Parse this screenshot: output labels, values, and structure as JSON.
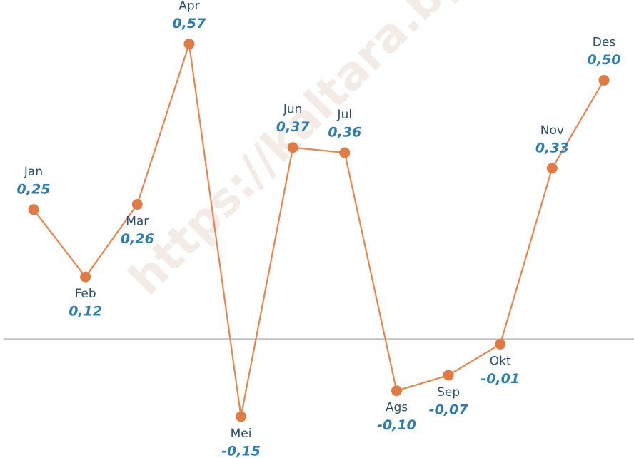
{
  "chart_data": {
    "type": "line",
    "watermark": "https://kaltara.bp",
    "categories": [
      "Jan",
      "Feb",
      "Mar",
      "Apr",
      "Mei",
      "Jun",
      "Jul",
      "Ags",
      "Sep",
      "Okt",
      "Nov",
      "Des"
    ],
    "series": [
      {
        "color": "#e8864f",
        "values": [
          0.25,
          0.12,
          0.26,
          0.57,
          -0.15,
          0.37,
          0.36,
          -0.1,
          -0.07,
          -0.01,
          0.33,
          0.5
        ],
        "value_labels": [
          "0,25",
          "0,12",
          "0,26",
          "0,57",
          "-0,15",
          "0,37",
          "0,36",
          "-0,10",
          "-0,07",
          "-0,01",
          "0,33",
          "0,50"
        ]
      }
    ],
    "ylim": [
      -0.23,
      0.655
    ],
    "zero_line": true
  }
}
